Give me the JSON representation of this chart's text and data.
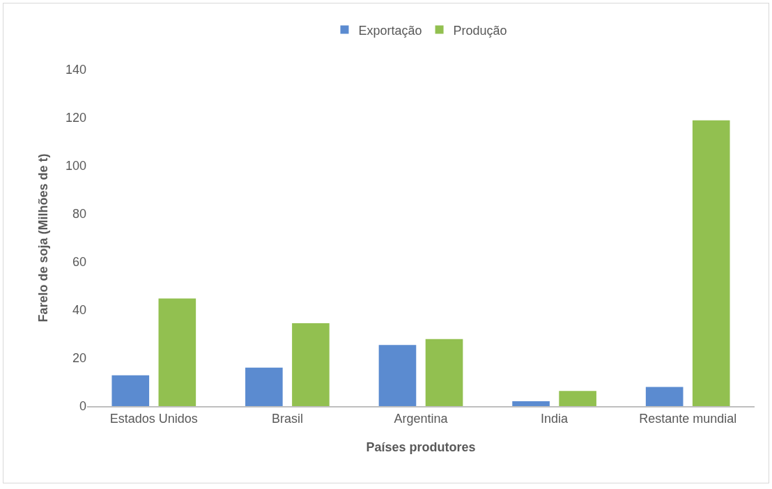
{
  "chart_data": {
    "type": "bar",
    "xlabel": "Países produtores",
    "ylabel": "Farelo de soja (Milhões de t)",
    "categories": [
      "Estados Unidos",
      "Brasil",
      "Argentina",
      "India",
      "Restante mundial"
    ],
    "series": [
      {
        "name": "Exportação",
        "color": "#5b8bd0",
        "values": [
          12.8,
          16,
          25.4,
          2,
          8
        ]
      },
      {
        "name": "Produção",
        "color": "#92c050",
        "values": [
          44.8,
          34.5,
          27.9,
          6.3,
          118.9
        ]
      }
    ],
    "ylim": [
      0,
      140
    ],
    "yticks": [
      0,
      20,
      40,
      60,
      80,
      100,
      120,
      140
    ],
    "grid": false,
    "legend": "top"
  }
}
